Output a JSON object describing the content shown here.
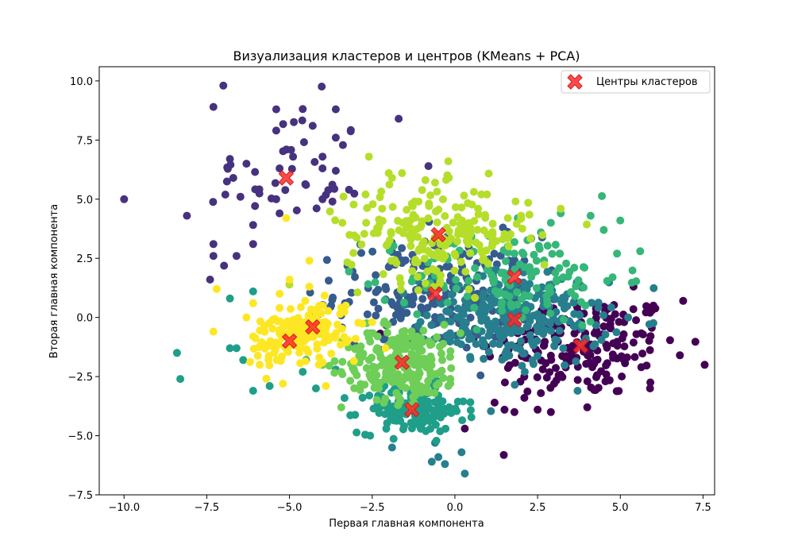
{
  "chart_data": {
    "type": "scatter",
    "title": "Визуализация кластеров и центров (KMeans + PCA)",
    "xlabel": "Первая главная компонента",
    "ylabel": "Вторая главная компонента",
    "xlim": [
      -10.75,
      7.85
    ],
    "ylim": [
      -7.5,
      10.6
    ],
    "xticks": [
      -10.0,
      -7.5,
      -5.0,
      -2.5,
      0.0,
      2.5,
      5.0,
      7.5
    ],
    "xtick_labels": [
      "−10.0",
      "−7.5",
      "−5.0",
      "−2.5",
      "0.0",
      "2.5",
      "5.0",
      "7.5"
    ],
    "yticks": [
      -7.5,
      -5.0,
      -2.5,
      0.0,
      2.5,
      5.0,
      7.5,
      10.0
    ],
    "ytick_labels": [
      "−7.5",
      "−5.0",
      "−2.5",
      "0.0",
      "2.5",
      "5.0",
      "7.5",
      "10.0"
    ],
    "grid": false,
    "legend_position": "top-right",
    "legend": [
      {
        "label": "Центры кластеров",
        "marker": "X",
        "color": "#ff2a2a"
      }
    ],
    "clusters": [
      {
        "id": 0,
        "color": "#440154",
        "center": [
          3.8,
          -1.2
        ],
        "spread": [
          1.5,
          1.1
        ],
        "count": 190,
        "points": [
          [
            6.9,
            0.7
          ],
          [
            6.0,
            0.5
          ],
          [
            5.9,
            0.2
          ],
          [
            6.8,
            -1.6
          ],
          [
            5.9,
            -3.0
          ],
          [
            4.0,
            -3.8
          ],
          [
            3.0,
            -2.8
          ],
          [
            2.6,
            -3.2
          ],
          [
            2.1,
            -3.4
          ],
          [
            1.2,
            -3.6
          ],
          [
            1.5,
            -3.9
          ],
          [
            0.3,
            -4.7
          ],
          [
            5.4,
            1.3
          ],
          [
            2.9,
            -4.0
          ],
          [
            2.5,
            -3.9
          ],
          [
            1.8,
            -4.0
          ]
        ]
      },
      {
        "id": 1,
        "color": "#46327e",
        "center": [
          -5.1,
          5.9
        ],
        "spread": [
          1.2,
          1.6
        ],
        "count": 40,
        "points": [
          [
            -7.0,
            9.8
          ],
          [
            -7.3,
            8.9
          ],
          [
            -5.4,
            8.8
          ],
          [
            -4.3,
            8.1
          ],
          [
            -3.6,
            8.8
          ],
          [
            -5.4,
            7.9
          ],
          [
            -3.6,
            7.6
          ],
          [
            -1.7,
            8.4
          ],
          [
            -10.0,
            5.0
          ],
          [
            -8.1,
            4.3
          ],
          [
            -7.3,
            3.1
          ],
          [
            -7.3,
            2.6
          ],
          [
            -6.6,
            2.6
          ],
          [
            -6.1,
            3.1
          ],
          [
            -7.4,
            1.6
          ],
          [
            -6.8,
            6.7
          ],
          [
            -6.3,
            6.5
          ],
          [
            -6.7,
            5.9
          ],
          [
            -5.3,
            6.3
          ],
          [
            -4.5,
            5.6
          ],
          [
            -4.0,
            6.8
          ],
          [
            -3.6,
            6.2
          ],
          [
            -3.2,
            5.4
          ],
          [
            -4.0,
            6.3
          ],
          [
            -5.3,
            4.4
          ],
          [
            -5.4,
            5.0
          ],
          [
            -0.8,
            6.4
          ],
          [
            -4.0,
            5.0
          ],
          [
            -3.7,
            4.9
          ]
        ]
      },
      {
        "id": 2,
        "color": "#365c8d",
        "center": [
          -0.6,
          1.0
        ],
        "spread": [
          1.5,
          1.2
        ],
        "count": 230,
        "points": []
      },
      {
        "id": 3,
        "color": "#277f8e",
        "center": [
          1.8,
          -0.1
        ],
        "spread": [
          1.4,
          1.0
        ],
        "count": 260,
        "points": [
          [
            0.2,
            -5.7
          ],
          [
            -0.3,
            -6.2
          ],
          [
            -0.5,
            -5.9
          ],
          [
            -0.6,
            -5.3
          ],
          [
            0.3,
            -6.6
          ],
          [
            -0.7,
            -6.1
          ],
          [
            -1.9,
            -5.5
          ]
        ]
      },
      {
        "id": 4,
        "color": "#1f9e89",
        "center": [
          -1.3,
          -3.9
        ],
        "spread": [
          0.8,
          0.5
        ],
        "count": 150,
        "points": [
          [
            -8.3,
            -2.6
          ],
          [
            -8.4,
            -1.5
          ],
          [
            -6.1,
            -3.1
          ],
          [
            -5.6,
            -2.9
          ],
          [
            -6.6,
            -1.3
          ],
          [
            -6.8,
            -1.3
          ],
          [
            -6.4,
            -1.8
          ],
          [
            -6.1,
            1.1
          ],
          [
            -6.8,
            0.8
          ],
          [
            -4.2,
            -3.0
          ],
          [
            -4.6,
            -2.3
          ],
          [
            -3.6,
            -2.2
          ],
          [
            -4.5,
            -1.8
          ]
        ]
      },
      {
        "id": 5,
        "color": "#35b779",
        "center": [
          1.8,
          1.7
        ],
        "spread": [
          1.6,
          1.0
        ],
        "count": 130,
        "points": [
          [
            4.1,
            4.3
          ],
          [
            3.2,
            4.4
          ],
          [
            5.0,
            4.1
          ],
          [
            4.5,
            3.7
          ],
          [
            2.6,
            3.6
          ],
          [
            5.6,
            2.8
          ],
          [
            4.9,
            2.7
          ],
          [
            1.9,
            4.2
          ],
          [
            2.9,
            4.0
          ],
          [
            1.8,
            2.7
          ],
          [
            1.6,
            3.0
          ]
        ]
      },
      {
        "id": 6,
        "color": "#6ece58",
        "center": [
          -1.6,
          -1.9
        ],
        "spread": [
          0.9,
          0.8
        ],
        "count": 230,
        "points": [
          [
            -3.4,
            -2.4
          ],
          [
            -1.2,
            -3.3
          ],
          [
            -0.2,
            -2.9
          ],
          [
            -2.3,
            -3.0
          ],
          [
            -3.0,
            -1.3
          ]
        ]
      },
      {
        "id": 7,
        "color": "#b5de2b",
        "center": [
          -0.5,
          3.5
        ],
        "spread": [
          1.4,
          1.0
        ],
        "count": 200,
        "points": [
          [
            -2.6,
            6.8
          ],
          [
            -1.6,
            6.1
          ],
          [
            -2.0,
            6.1
          ],
          [
            -0.2,
            6.6
          ],
          [
            -0.6,
            5.7
          ],
          [
            0.8,
            5.2
          ],
          [
            0.7,
            4.6
          ],
          [
            -1.9,
            5.9
          ],
          [
            -3.4,
            4.0
          ],
          [
            -2.2,
            4.6
          ],
          [
            -2.7,
            5.2
          ],
          [
            -1.1,
            4.9
          ],
          [
            2.0,
            4.3
          ],
          [
            1.6,
            4.2
          ],
          [
            3.2,
            4.6
          ]
        ]
      },
      {
        "id": 8,
        "color": "#fde725",
        "center": [
          -4.3,
          -0.4
        ],
        "spread": [
          0.6,
          0.5
        ],
        "count": 85,
        "points": [
          [
            -7.2,
            1.2
          ],
          [
            -7.3,
            -0.6
          ],
          [
            -6.3,
            0.0
          ],
          [
            -6.1,
            0.6
          ],
          [
            -6.1,
            -0.8
          ],
          [
            -5.3,
            1.0
          ],
          [
            -5.0,
            1.6
          ],
          [
            -3.9,
            -2.9
          ],
          [
            -4.0,
            0.5
          ],
          [
            -4.4,
            1.3
          ],
          [
            -3.3,
            0.5
          ],
          [
            -4.0,
            -1.9
          ],
          [
            -5.3,
            0.4
          ],
          [
            -2.5,
            -0.2
          ],
          [
            -3.0,
            -0.9
          ],
          [
            -5.1,
            4.2
          ],
          [
            -4.4,
            2.4
          ],
          [
            -2.1,
            -1.3
          ],
          [
            -5.2,
            -2.8
          ],
          [
            -5.9,
            -2.0
          ]
        ]
      },
      {
        "id": 9,
        "color": "#fde725",
        "center": [
          -5.0,
          -1.0
        ],
        "spread": [
          0.6,
          0.6
        ],
        "count": 80,
        "points": []
      }
    ]
  }
}
